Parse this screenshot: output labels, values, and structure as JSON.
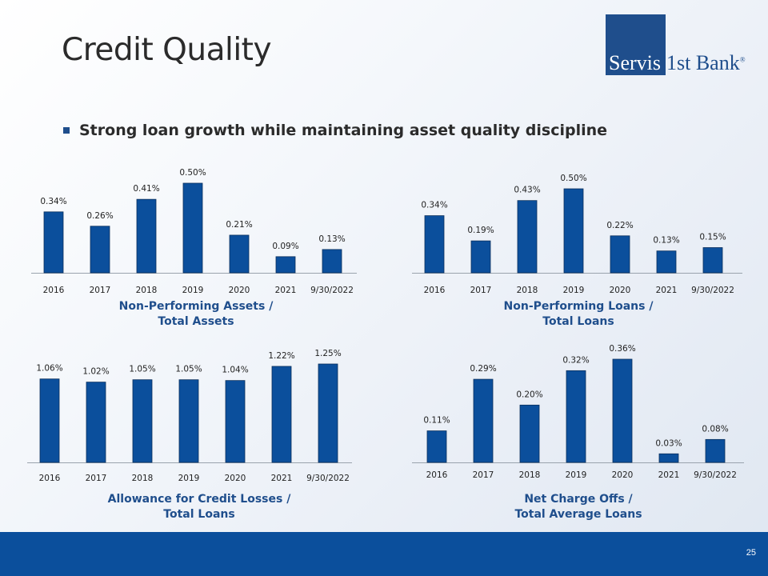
{
  "slide": {
    "title": "Credit Quality",
    "bullet": "Strong loan growth while maintaining asset quality discipline",
    "page_number": "25",
    "logo": {
      "part1": "Servis",
      "part2": "1st Bank",
      "mark": "®"
    }
  },
  "colors": {
    "bar": "#0b4f9c",
    "footer": "#0b4f9c",
    "caption": "#1f4e8c",
    "logo_blue": "#1f4e8c"
  },
  "chart_data": [
    {
      "type": "bar",
      "caption_line1": "Non-Performing Assets /",
      "caption_line2": "Total Assets",
      "categories": [
        "2016",
        "2017",
        "2018",
        "2019",
        "2020",
        "2021",
        "9/30/2022"
      ],
      "values": [
        0.34,
        0.26,
        0.41,
        0.5,
        0.21,
        0.09,
        0.13
      ],
      "labels": [
        "0.34%",
        "0.26%",
        "0.41%",
        "0.50%",
        "0.21%",
        "0.09%",
        "0.13%"
      ],
      "ylim": [
        0,
        0.5
      ]
    },
    {
      "type": "bar",
      "caption_line1": "Non-Performing Loans /",
      "caption_line2": "Total Loans",
      "categories": [
        "2016",
        "2017",
        "2018",
        "2019",
        "2020",
        "2021",
        "9/30/2022"
      ],
      "values": [
        0.34,
        0.19,
        0.43,
        0.5,
        0.22,
        0.13,
        0.15
      ],
      "labels": [
        "0.34%",
        "0.19%",
        "0.43%",
        "0.50%",
        "0.22%",
        "0.13%",
        "0.15%"
      ],
      "ylim": [
        0,
        0.5
      ]
    },
    {
      "type": "bar",
      "caption_line1": "Allowance for Credit Losses /",
      "caption_line2": "Total Loans",
      "categories": [
        "2016",
        "2017",
        "2018",
        "2019",
        "2020",
        "2021",
        "9/30/2022"
      ],
      "values": [
        1.06,
        1.02,
        1.05,
        1.05,
        1.04,
        1.22,
        1.25
      ],
      "labels": [
        "1.06%",
        "1.02%",
        "1.05%",
        "1.05%",
        "1.04%",
        "1.22%",
        "1.25%"
      ],
      "ylim": [
        0,
        1.25
      ]
    },
    {
      "type": "bar",
      "caption_line1": "Net Charge Offs /",
      "caption_line2": "Total Average Loans",
      "categories": [
        "2016",
        "2017",
        "2018",
        "2019",
        "2020",
        "2021",
        "9/30/2022"
      ],
      "values": [
        0.11,
        0.29,
        0.2,
        0.32,
        0.36,
        0.03,
        0.08
      ],
      "labels": [
        "0.11%",
        "0.29%",
        "0.20%",
        "0.32%",
        "0.36%",
        "0.03%",
        "0.08%"
      ],
      "ylim": [
        0,
        0.36
      ]
    }
  ]
}
